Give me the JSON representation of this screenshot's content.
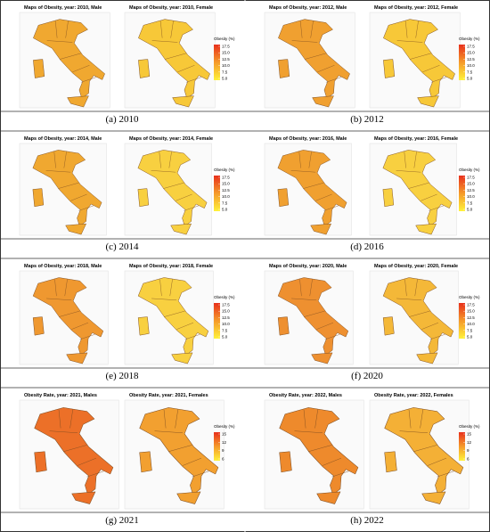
{
  "panels": [
    {
      "tag": "(a)",
      "year": "2010",
      "maps": [
        {
          "title": "Maps of Obesity, year: 2010, Male",
          "color": "#f0a830"
        },
        {
          "title": "Maps of Obesity, year: 2010, Female",
          "color": "#f7c838"
        }
      ],
      "legend": {
        "title": "Obesity (%)",
        "ticks": [
          17.5,
          {
            "value": 15,
            "label": "15.0"
          },
          12.5,
          {
            "value": 10,
            "label": "10.0"
          },
          7.5,
          {
            "value": 5,
            "label": "5.0"
          }
        ]
      }
    },
    {
      "tag": "(b)",
      "year": "2012",
      "maps": [
        {
          "title": "Maps of Obesity, year: 2012, Male",
          "color": "#f0a030"
        },
        {
          "title": "Maps of Obesity, year: 2012, Female",
          "color": "#f7c838"
        }
      ],
      "legend": {
        "title": "Obesity (%)",
        "ticks": [
          17.5,
          {
            "value": 15,
            "label": "15.0"
          },
          12.5,
          {
            "value": 10,
            "label": "10.0"
          },
          7.5,
          {
            "value": 5,
            "label": "5.0"
          }
        ]
      }
    },
    {
      "tag": "(c)",
      "year": "2014",
      "maps": [
        {
          "title": "Maps of Obesity, year: 2014, Male",
          "color": "#f0a830"
        },
        {
          "title": "Maps of Obesity, year: 2014, Female",
          "color": "#f8d040"
        }
      ],
      "legend": {
        "title": "Obesity (%)",
        "ticks": [
          17.5,
          {
            "value": 15,
            "label": "15.0"
          },
          12.5,
          {
            "value": 10,
            "label": "10.0"
          },
          7.5,
          {
            "value": 5,
            "label": "5.0"
          }
        ]
      }
    },
    {
      "tag": "(d)",
      "year": "2016",
      "maps": [
        {
          "title": "Maps of Obesity, year: 2016, Male",
          "color": "#f0a030"
        },
        {
          "title": "Maps of Obesity, year: 2016, Female",
          "color": "#f8d040"
        }
      ],
      "legend": {
        "title": "Obesity (%)",
        "ticks": [
          17.5,
          {
            "value": 15,
            "label": "15.0"
          },
          12.5,
          {
            "value": 10,
            "label": "10.0"
          },
          7.5,
          {
            "value": 5,
            "label": "5.0"
          }
        ]
      }
    },
    {
      "tag": "(e)",
      "year": "2018",
      "maps": [
        {
          "title": "Maps of Obesity, year: 2018, Male",
          "color": "#ef9830"
        },
        {
          "title": "Maps of Obesity, year: 2018, Female",
          "color": "#f8d040"
        }
      ],
      "legend": {
        "title": "Obesity (%)",
        "ticks": [
          17.5,
          {
            "value": 15,
            "label": "15.0"
          },
          12.5,
          {
            "value": 10,
            "label": "10.0"
          },
          7.5,
          {
            "value": 5,
            "label": "5.0"
          }
        ]
      }
    },
    {
      "tag": "(f)",
      "year": "2020",
      "maps": [
        {
          "title": "Maps of Obesity, year: 2020, Male",
          "color": "#ee9030"
        },
        {
          "title": "Maps of Obesity, year: 2020, Female",
          "color": "#f4b838"
        }
      ],
      "legend": {
        "title": "Obesity (%)",
        "ticks": [
          17.5,
          {
            "value": 15,
            "label": "15.0"
          },
          12.5,
          {
            "value": 10,
            "label": "10.0"
          },
          7.5,
          {
            "value": 5,
            "label": "5.0"
          }
        ]
      }
    },
    {
      "tag": "(g)",
      "year": "2021",
      "maps": [
        {
          "title": "Obesity Rate, year: 2021, Males",
          "color": "#ec7028"
        },
        {
          "title": "Obesity Rate, year: 2021, Females",
          "color": "#f2a030"
        }
      ],
      "legend": {
        "title": "Obesity (%)",
        "ticks": [
          15,
          12,
          9,
          6
        ]
      }
    },
    {
      "tag": "(h)",
      "year": "2022",
      "maps": [
        {
          "title": "Obesity Rate, year: 2022, Males",
          "color": "#ee8a2c"
        },
        {
          "title": "Obesity Rate, year: 2022, Females",
          "color": "#f4b036"
        }
      ],
      "legend": {
        "title": "Obesity (%)",
        "ticks": [
          15,
          12,
          9,
          6
        ]
      }
    }
  ]
}
